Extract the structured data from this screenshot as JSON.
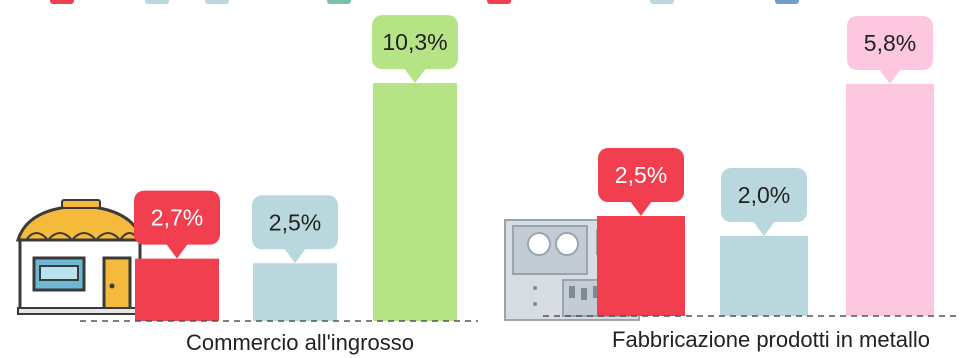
{
  "chart_data": [
    {
      "type": "bar",
      "categories": [
        "Commercio all'ingrosso"
      ],
      "series": [
        {
          "values": [
            2.7
          ],
          "color": "#f23f4f",
          "label_text": "2,7%"
        },
        {
          "values": [
            2.5
          ],
          "color": "#b9d8dd",
          "label_text": "2,5%"
        },
        {
          "values": [
            10.3
          ],
          "color": "#b5e385",
          "label_text": "10,3%"
        }
      ],
      "icon": "shop-icon"
    },
    {
      "type": "bar",
      "categories": [
        "Fabbricazione prodotti in metallo"
      ],
      "series": [
        {
          "values": [
            2.5
          ],
          "color": "#f23f4f",
          "label_text": "2,5%"
        },
        {
          "values": [
            2.0
          ],
          "color": "#b9d8dd",
          "label_text": "2,0%"
        },
        {
          "values": [
            5.8
          ],
          "color": "#fcc7df",
          "label_text": "5,8%"
        }
      ],
      "icon": "industrial-machine-icon"
    }
  ],
  "colors": {
    "legend_swatches": [
      "#f23f4f",
      "#b9d8dd",
      "#b9d8dd",
      "#7fc1a7",
      "#f23f4f",
      "#b9d8dd",
      "#6f9fc8"
    ],
    "value_text_on_dark": "#ffffff",
    "value_text_on_light": "#222222"
  }
}
